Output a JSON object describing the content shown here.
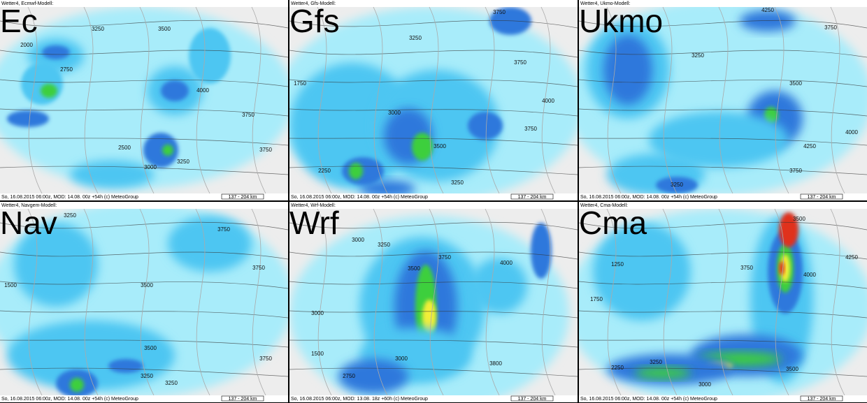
{
  "panels": [
    {
      "header": "Wetter4, Ecmwf-Modell:",
      "label": "Ec",
      "footer": "So, 16.08.2015 06:00z, MOD: 14.08. 00z +54h (c) MeteoGroup",
      "scale": "137 - 204 km",
      "contours": [
        "3250",
        "3500",
        "2000",
        "2750",
        "4000",
        "3750",
        "2500",
        "3250",
        "3000",
        "3750"
      ]
    },
    {
      "header": "Wetter4, Gfs-Modell:",
      "label": "Gfs",
      "footer": "So, 16.08.2015 06:00z, MOD: 14.08. 00z +54h (c) MeteoGroup",
      "scale": "137 - 204 km",
      "contours": [
        "3750",
        "3250",
        "1750",
        "3750",
        "3000",
        "3500",
        "2250",
        "3750",
        "4000",
        "3250"
      ]
    },
    {
      "header": "Wetter4, Ukmo-Modell:",
      "label": "Ukmo",
      "footer": "So, 16.08.2015 06:00z, MOD: 14.08. 00z +54h (c) MeteoGroup",
      "scale": "137 - 204 km",
      "contours": [
        "4250",
        "3750",
        "3250",
        "3500",
        "4000",
        "4250",
        "3750",
        "3250"
      ]
    },
    {
      "header": "Wetter4, Navgem-Modell:",
      "label": "Nav",
      "footer": "So, 16.08.2015 06:00z, MOD: 14.08. 00z +54h (c) MeteoGroup",
      "scale": "137 - 204 km",
      "contours": [
        "3250",
        "3750",
        "1500",
        "3500",
        "3750",
        "3500",
        "3250",
        "3750",
        "3250"
      ]
    },
    {
      "header": "Wetter4, Wrf-Modell:",
      "label": "Wrf",
      "footer": "So, 16.08.2015 06:00z, MOD: 13.08. 18z +60h (c) MeteoGroup",
      "scale": "137 - 204 km",
      "contours": [
        "3000",
        "3250",
        "3500",
        "3750",
        "4000",
        "3000",
        "1500",
        "2750",
        "3000",
        "3800"
      ]
    },
    {
      "header": "Wetter4, Cma-Modell:",
      "label": "Cma",
      "footer": "So, 16.08.2015 06:00z, MOD: 14.08. 00z +54h (c) MeteoGroup",
      "scale": "137 - 204 km",
      "contours": [
        "3500",
        "1250",
        "4000",
        "1750",
        "3750",
        "4250",
        "2250",
        "3250",
        "3000",
        "3500"
      ]
    }
  ]
}
